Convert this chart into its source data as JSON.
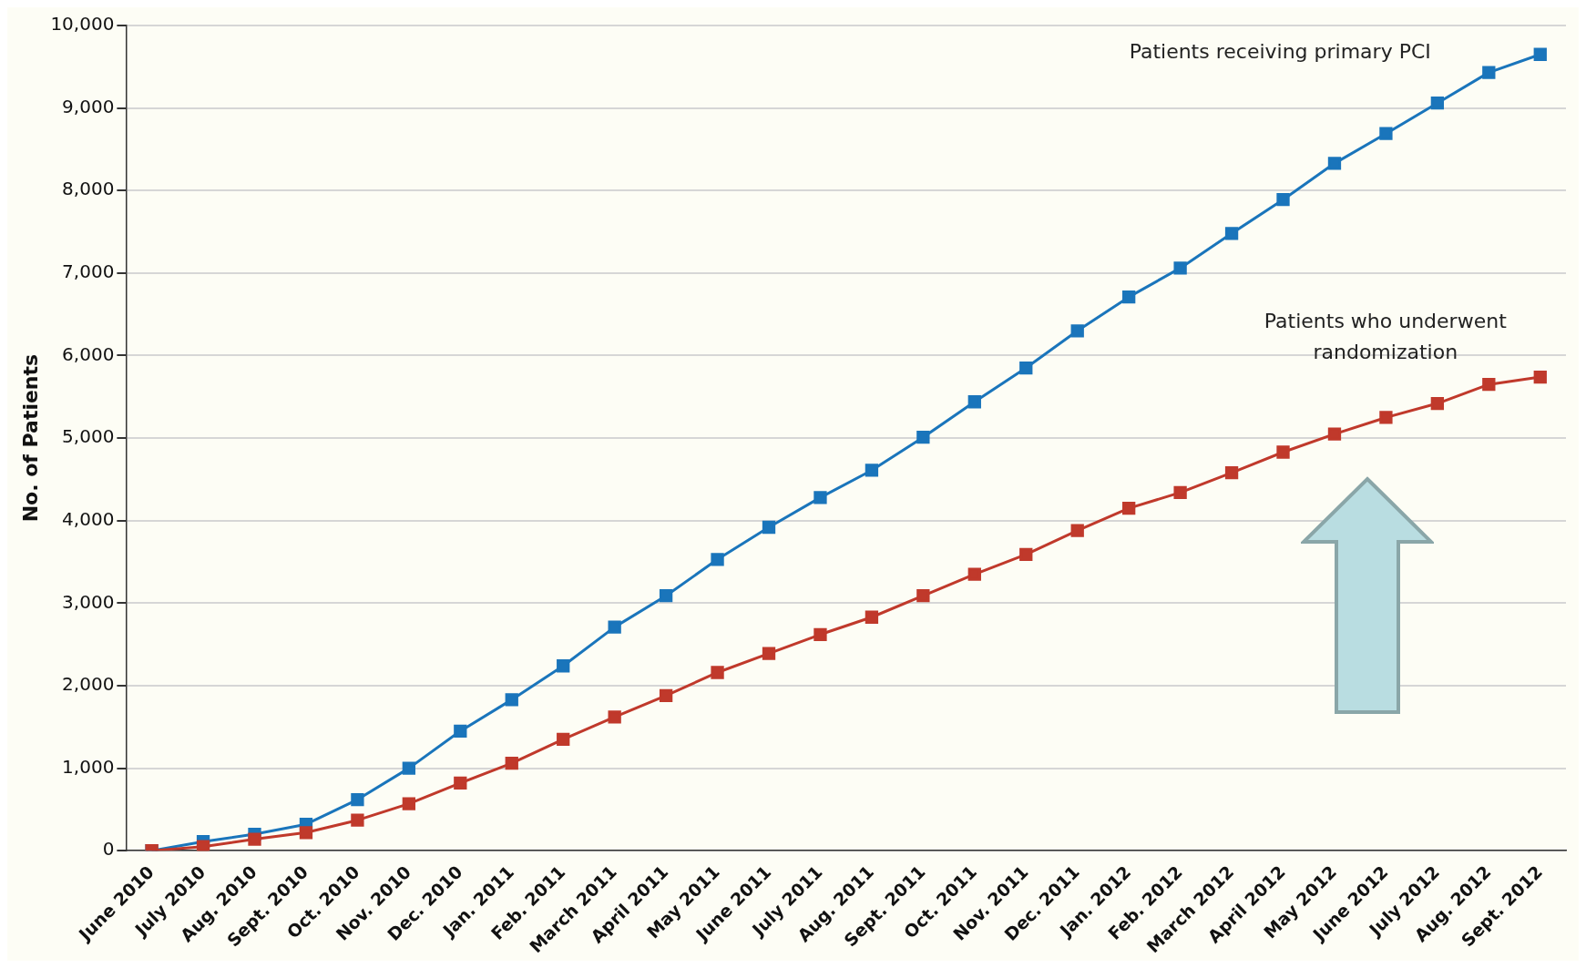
{
  "chart_data": {
    "type": "line",
    "ylabel": "No. of Patients",
    "categories": [
      "June 2010",
      "July 2010",
      "Aug. 2010",
      "Sept. 2010",
      "Oct. 2010",
      "Nov. 2010",
      "Dec. 2010",
      "Jan. 2011",
      "Feb. 2011",
      "March 2011",
      "April 2011",
      "May 2011",
      "June 2011",
      "July 2011",
      "Aug. 2011",
      "Sept. 2011",
      "Oct. 2011",
      "Nov. 2011",
      "Dec. 2011",
      "Jan. 2012",
      "Feb. 2012",
      "March 2012",
      "April 2012",
      "May 2012",
      "June 2012",
      "July 2012",
      "Aug. 2012",
      "Sept. 2012"
    ],
    "series": [
      {
        "name": "Patients receiving primary PCI",
        "color": "#1a75bb",
        "values": [
          0,
          110,
          200,
          320,
          620,
          1000,
          1450,
          1830,
          2240,
          2710,
          3090,
          3530,
          3920,
          4280,
          4610,
          5010,
          5440,
          5850,
          6300,
          6710,
          7060,
          7480,
          7890,
          8330,
          8690,
          9060,
          9430,
          9650
        ]
      },
      {
        "name": "Patients who underwent randomization",
        "color": "#c0392b",
        "values": [
          0,
          50,
          140,
          220,
          370,
          570,
          820,
          1060,
          1350,
          1620,
          1880,
          2160,
          2390,
          2620,
          2830,
          3090,
          3350,
          3590,
          3880,
          4150,
          4340,
          4580,
          4830,
          5050,
          5250,
          5420,
          5650,
          5740
        ]
      }
    ],
    "ylim": [
      0,
      10000
    ],
    "yticks": [
      0,
      {
        "value": 1000,
        "label": "1,000"
      },
      {
        "value": 2000,
        "label": "2,000"
      },
      {
        "value": 3000,
        "label": "3,000"
      },
      {
        "value": 4000,
        "label": "4,000"
      },
      {
        "value": 5000,
        "label": "5,000"
      },
      {
        "value": 6000,
        "label": "6,000"
      },
      {
        "value": 7000,
        "label": "7,000"
      },
      {
        "value": 8000,
        "label": "8,000"
      },
      {
        "value": 9000,
        "label": "9,000"
      },
      {
        "value": 10000,
        "label": "10,000"
      }
    ],
    "grid": "y",
    "legend": false,
    "marker": "square",
    "line_style": "solid"
  }
}
